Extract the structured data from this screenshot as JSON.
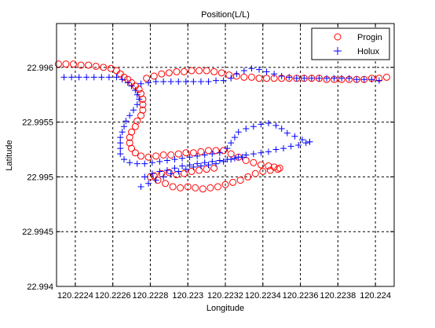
{
  "chart_data": {
    "type": "scatter",
    "title": "Position(L/L)",
    "xlabel": "Longitude",
    "ylabel": "Latitude",
    "xlim": [
      120.2223,
      120.2241
    ],
    "ylim": [
      22.994,
      22.9964
    ],
    "x_ticks": [
      120.2224,
      120.2226,
      120.2228,
      120.223,
      120.2232,
      120.2234,
      120.2236,
      120.2238,
      120.224
    ],
    "x_tick_labels": [
      "120.2224",
      "120.2226",
      "120.2228",
      "120.223",
      "120.2232",
      "120.2234",
      "120.2236",
      "120.2238",
      "120.224"
    ],
    "y_ticks": [
      22.994,
      22.9945,
      22.995,
      22.9955,
      22.996
    ],
    "y_tick_labels": [
      "22.994",
      "22.9945",
      "22.995",
      "22.9955",
      "22.996"
    ],
    "grid": true,
    "legend_position": "top-right",
    "series": [
      {
        "name": "Progin",
        "marker": "circle",
        "color": "#ff0000",
        "points": [
          [
            120.22231,
            22.99603
          ],
          [
            120.22235,
            22.99603
          ],
          [
            120.22239,
            22.99603
          ],
          [
            120.22243,
            22.99602
          ],
          [
            120.22247,
            22.99602
          ],
          [
            120.22251,
            22.99601
          ],
          [
            120.22255,
            22.996
          ],
          [
            120.22259,
            22.99599
          ],
          [
            120.22262,
            22.99597
          ],
          [
            120.22264,
            22.99594
          ],
          [
            120.22266,
            22.99591
          ],
          [
            120.22268,
            22.99589
          ],
          [
            120.2227,
            22.99586
          ],
          [
            120.22272,
            22.99583
          ],
          [
            120.22274,
            22.9958
          ],
          [
            120.22275,
            22.99576
          ],
          [
            120.22276,
            22.99571
          ],
          [
            120.22276,
            22.99566
          ],
          [
            120.22276,
            22.99561
          ],
          [
            120.22275,
            22.99556
          ],
          [
            120.22273,
            22.99551
          ],
          [
            120.22272,
            22.99546
          ],
          [
            120.2227,
            22.99541
          ],
          [
            120.22269,
            22.99536
          ],
          [
            120.22269,
            22.99531
          ],
          [
            120.2227,
            22.99526
          ],
          [
            120.22272,
            22.99522
          ],
          [
            120.22275,
            22.99519
          ],
          [
            120.22279,
            22.99518
          ],
          [
            120.22283,
            22.99519
          ],
          [
            120.22287,
            22.9952
          ],
          [
            120.22291,
            22.9952
          ],
          [
            120.22295,
            22.99521
          ],
          [
            120.22299,
            22.99522
          ],
          [
            120.22303,
            22.99522
          ],
          [
            120.22307,
            22.99523
          ],
          [
            120.22311,
            22.99524
          ],
          [
            120.22315,
            22.99524
          ],
          [
            120.22319,
            22.99524
          ],
          [
            120.22323,
            22.99521
          ],
          [
            120.22327,
            22.99518
          ],
          [
            120.22331,
            22.99515
          ],
          [
            120.22335,
            22.99513
          ],
          [
            120.22339,
            22.99511
          ],
          [
            120.22343,
            22.9951
          ],
          [
            120.22346,
            22.99509
          ],
          [
            120.22349,
            22.99508
          ],
          [
            120.22278,
            22.9959
          ],
          [
            120.22282,
            22.99592
          ],
          [
            120.22286,
            22.99594
          ],
          [
            120.2229,
            22.99595
          ],
          [
            120.22294,
            22.99596
          ],
          [
            120.22298,
            22.99596
          ],
          [
            120.22302,
            22.99597
          ],
          [
            120.22306,
            22.99597
          ],
          [
            120.2231,
            22.99597
          ],
          [
            120.22314,
            22.99596
          ],
          [
            120.22318,
            22.99595
          ],
          [
            120.22322,
            22.99593
          ],
          [
            120.22326,
            22.99592
          ],
          [
            120.2233,
            22.99591
          ],
          [
            120.22334,
            22.99591
          ],
          [
            120.22338,
            22.9959
          ],
          [
            120.22342,
            22.9959
          ],
          [
            120.22346,
            22.9959
          ],
          [
            120.2235,
            22.9959
          ],
          [
            120.22354,
            22.9959
          ],
          [
            120.22358,
            22.9959
          ],
          [
            120.22362,
            22.9959
          ],
          [
            120.22366,
            22.9959
          ],
          [
            120.2237,
            22.9959
          ],
          [
            120.22374,
            22.99589
          ],
          [
            120.22378,
            22.99589
          ],
          [
            120.22382,
            22.99589
          ],
          [
            120.22386,
            22.99589
          ],
          [
            120.2239,
            22.99589
          ],
          [
            120.22394,
            22.99589
          ],
          [
            120.22398,
            22.9959
          ],
          [
            120.22402,
            22.9959
          ],
          [
            120.22406,
            22.99591
          ],
          [
            120.2228,
            22.995
          ],
          [
            120.22284,
            22.99497
          ],
          [
            120.22288,
            22.99494
          ],
          [
            120.22292,
            22.99491
          ],
          [
            120.22296,
            22.9949
          ],
          [
            120.223,
            22.99491
          ],
          [
            120.22304,
            22.9949
          ],
          [
            120.22308,
            22.99489
          ],
          [
            120.22312,
            22.9949
          ],
          [
            120.22316,
            22.99491
          ],
          [
            120.2232,
            22.99493
          ],
          [
            120.22324,
            22.99495
          ],
          [
            120.22328,
            22.99497
          ],
          [
            120.22332,
            22.995
          ],
          [
            120.22336,
            22.99503
          ],
          [
            120.2234,
            22.99505
          ],
          [
            120.22344,
            22.99506
          ],
          [
            120.22348,
            22.99507
          ],
          [
            120.22282,
            22.99501
          ],
          [
            120.22286,
            22.99503
          ],
          [
            120.2229,
            22.99504
          ],
          [
            120.22294,
            22.99502
          ],
          [
            120.22298,
            22.99503
          ],
          [
            120.22302,
            22.99505
          ],
          [
            120.22306,
            22.99506
          ],
          [
            120.2231,
            22.99507
          ],
          [
            120.22314,
            22.99508
          ]
        ]
      },
      {
        "name": "Holux",
        "marker": "plus",
        "color": "#0000ff",
        "points": [
          [
            120.22234,
            22.99591
          ],
          [
            120.22238,
            22.99591
          ],
          [
            120.22242,
            22.99591
          ],
          [
            120.22246,
            22.99591
          ],
          [
            120.2225,
            22.99591
          ],
          [
            120.22254,
            22.99591
          ],
          [
            120.22258,
            22.99591
          ],
          [
            120.22262,
            22.99591
          ],
          [
            120.22265,
            22.99589
          ],
          [
            120.22268,
            22.99586
          ],
          [
            120.2227,
            22.99583
          ],
          [
            120.22272,
            22.99579
          ],
          [
            120.22273,
            22.99575
          ],
          [
            120.22274,
            22.99571
          ],
          [
            120.22273,
            22.99566
          ],
          [
            120.22271,
            22.99561
          ],
          [
            120.22269,
            22.99556
          ],
          [
            120.22267,
            22.99551
          ],
          [
            120.22266,
            22.99546
          ],
          [
            120.22265,
            22.99541
          ],
          [
            120.22264,
            22.99536
          ],
          [
            120.22264,
            22.99531
          ],
          [
            120.22264,
            22.99526
          ],
          [
            120.22264,
            22.99521
          ],
          [
            120.22266,
            22.99516
          ],
          [
            120.22269,
            22.99513
          ],
          [
            120.22273,
            22.99512
          ],
          [
            120.22277,
            22.99512
          ],
          [
            120.22281,
            22.99513
          ],
          [
            120.22285,
            22.99514
          ],
          [
            120.22289,
            22.99515
          ],
          [
            120.22293,
            22.99516
          ],
          [
            120.22297,
            22.99517
          ],
          [
            120.22301,
            22.99518
          ],
          [
            120.22305,
            22.99519
          ],
          [
            120.22309,
            22.9952
          ],
          [
            120.22313,
            22.99521
          ],
          [
            120.22317,
            22.99522
          ],
          [
            120.22321,
            22.99526
          ],
          [
            120.22323,
            22.99531
          ],
          [
            120.22325,
            22.99536
          ],
          [
            120.22327,
            22.99541
          ],
          [
            120.22331,
            22.99544
          ],
          [
            120.22335,
            22.99546
          ],
          [
            120.22339,
            22.99548
          ],
          [
            120.22343,
            22.99549
          ],
          [
            120.22347,
            22.99547
          ],
          [
            120.2235,
            22.99544
          ],
          [
            120.22353,
            22.9954
          ],
          [
            120.22357,
            22.99537
          ],
          [
            120.22361,
            22.99534
          ],
          [
            120.22365,
            22.99532
          ],
          [
            120.22363,
            22.99531
          ],
          [
            120.22359,
            22.99529
          ],
          [
            120.22355,
            22.99528
          ],
          [
            120.22351,
            22.99526
          ],
          [
            120.22347,
            22.99525
          ],
          [
            120.22343,
            22.99523
          ],
          [
            120.22339,
            22.99522
          ],
          [
            120.22335,
            22.99521
          ],
          [
            120.22331,
            22.9952
          ],
          [
            120.22327,
            22.99518
          ],
          [
            120.22323,
            22.99516
          ],
          [
            120.22319,
            22.99514
          ],
          [
            120.22315,
            22.99512
          ],
          [
            120.22311,
            22.99511
          ],
          [
            120.22307,
            22.9951
          ],
          [
            120.22303,
            22.99509
          ],
          [
            120.22299,
            22.99507
          ],
          [
            120.22295,
            22.99505
          ],
          [
            120.22291,
            22.99503
          ],
          [
            120.22287,
            22.995
          ],
          [
            120.22283,
            22.99497
          ],
          [
            120.22279,
            22.99494
          ],
          [
            120.22275,
            22.99491
          ],
          [
            120.22277,
            22.995
          ],
          [
            120.22281,
            22.99503
          ],
          [
            120.22285,
            22.99505
          ],
          [
            120.22289,
            22.99506
          ],
          [
            120.22293,
            22.99508
          ],
          [
            120.22297,
            22.9951
          ],
          [
            120.22301,
            22.99511
          ],
          [
            120.22305,
            22.99512
          ],
          [
            120.22309,
            22.99513
          ],
          [
            120.22313,
            22.99514
          ],
          [
            120.22317,
            22.99515
          ],
          [
            120.22321,
            22.99516
          ],
          [
            120.22325,
            22.99517
          ],
          [
            120.22329,
            22.99518
          ],
          [
            120.22275,
            22.99585
          ],
          [
            120.22279,
            22.99586
          ],
          [
            120.22283,
            22.99587
          ],
          [
            120.22287,
            22.99587
          ],
          [
            120.22291,
            22.99587
          ],
          [
            120.22295,
            22.99587
          ],
          [
            120.22299,
            22.99587
          ],
          [
            120.22303,
            22.99587
          ],
          [
            120.22307,
            22.99587
          ],
          [
            120.22311,
            22.99587
          ],
          [
            120.22315,
            22.99588
          ],
          [
            120.22319,
            22.99588
          ],
          [
            120.22323,
            22.9959
          ],
          [
            120.22326,
            22.99594
          ],
          [
            120.2233,
            22.99597
          ],
          [
            120.22334,
            22.99599
          ],
          [
            120.22338,
            22.99598
          ],
          [
            120.22342,
            22.99596
          ],
          [
            120.22346,
            22.99594
          ],
          [
            120.2235,
            22.99592
          ],
          [
            120.22354,
            22.99591
          ],
          [
            120.22358,
            22.9959
          ],
          [
            120.22362,
            22.9959
          ],
          [
            120.22366,
            22.9959
          ],
          [
            120.2237,
            22.9959
          ],
          [
            120.22374,
            22.9959
          ],
          [
            120.22378,
            22.9959
          ],
          [
            120.22382,
            22.9959
          ],
          [
            120.22386,
            22.9959
          ],
          [
            120.2239,
            22.99589
          ],
          [
            120.22394,
            22.99589
          ],
          [
            120.22398,
            22.99589
          ],
          [
            120.22402,
            22.99588
          ]
        ]
      }
    ]
  }
}
